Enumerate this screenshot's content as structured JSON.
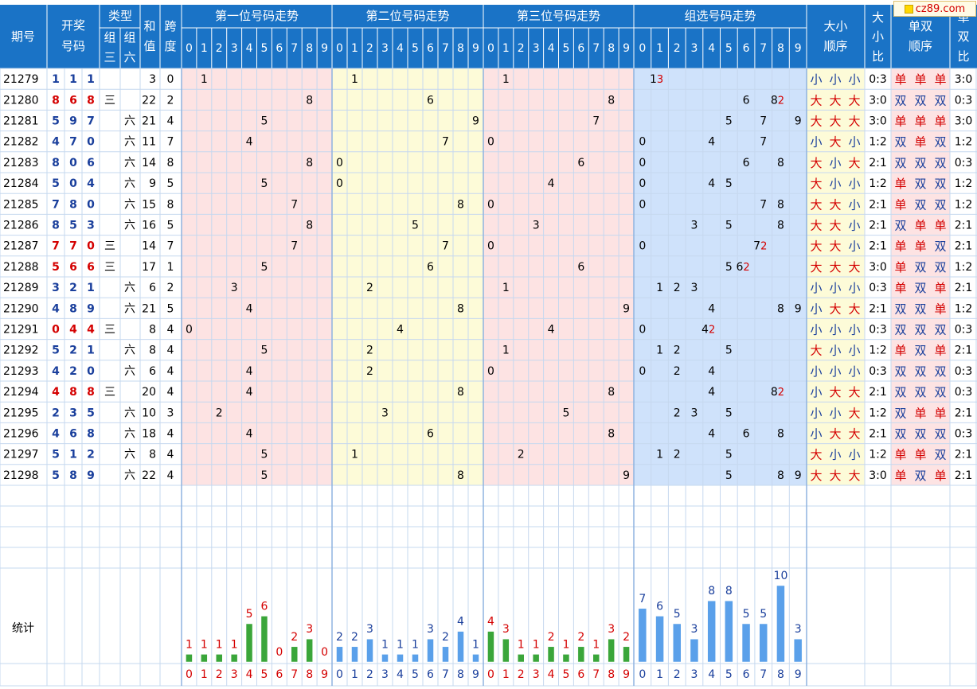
{
  "site_logo": "cz89.com",
  "header": {
    "issue": "期号",
    "draw_line1": "开奖",
    "draw_line2": "号码",
    "type": "类型",
    "zu3_a": "组",
    "zu3_b": "三",
    "zu6_a": "组",
    "zu6_b": "六",
    "sum_a": "和",
    "sum_b": "值",
    "span_a": "跨",
    "span_b": "度",
    "section1": "第一位号码走势",
    "section2": "第二位号码走势",
    "section3": "第三位号码走势",
    "section4": "组选号码走势",
    "bigsmall_order_a": "大小",
    "bigsmall_order_b": "顺序",
    "bigsmall_ratio_a": "大",
    "bigsmall_ratio_b": "小",
    "bigsmall_ratio_c": "比",
    "oddeven_order_a": "单双",
    "oddeven_order_b": "顺序",
    "oddeven_ratio_a": "单",
    "oddeven_ratio_b": "双",
    "oddeven_ratio_c": "比",
    "digits": [
      "0",
      "1",
      "2",
      "3",
      "4",
      "5",
      "6",
      "7",
      "8",
      "9"
    ]
  },
  "rows": [
    {
      "issue": "21279",
      "draw": [
        "1",
        "1",
        "1"
      ],
      "zu3": "",
      "zu6": "",
      "sum": "3",
      "span": "0",
      "group": [
        {
          "d": "1",
          "m": "3"
        }
      ],
      "bs": [
        "小",
        "小",
        "小"
      ],
      "bs_ratio": "0:3",
      "oe": [
        "单",
        "单",
        "单"
      ],
      "oe_ratio": "3:0"
    },
    {
      "issue": "21280",
      "draw": [
        "8",
        "6",
        "8"
      ],
      "zu3": "三",
      "zu6": "",
      "sum": "22",
      "span": "2",
      "group": [
        {
          "d": "6",
          "m": ""
        },
        {
          "d": "8",
          "m": "2"
        }
      ],
      "bs": [
        "大",
        "大",
        "大"
      ],
      "bs_ratio": "3:0",
      "oe": [
        "双",
        "双",
        "双"
      ],
      "oe_ratio": "0:3"
    },
    {
      "issue": "21281",
      "draw": [
        "5",
        "9",
        "7"
      ],
      "zu3": "",
      "zu6": "六",
      "sum": "21",
      "span": "4",
      "group": [
        {
          "d": "5",
          "m": ""
        },
        {
          "d": "7",
          "m": ""
        },
        {
          "d": "9",
          "m": ""
        }
      ],
      "bs": [
        "大",
        "大",
        "大"
      ],
      "bs_ratio": "3:0",
      "oe": [
        "单",
        "单",
        "单"
      ],
      "oe_ratio": "3:0"
    },
    {
      "issue": "21282",
      "draw": [
        "4",
        "7",
        "0"
      ],
      "zu3": "",
      "zu6": "六",
      "sum": "11",
      "span": "7",
      "group": [
        {
          "d": "0",
          "m": ""
        },
        {
          "d": "4",
          "m": ""
        },
        {
          "d": "7",
          "m": ""
        }
      ],
      "bs": [
        "小",
        "大",
        "小"
      ],
      "bs_ratio": "1:2",
      "oe": [
        "双",
        "单",
        "双"
      ],
      "oe_ratio": "1:2"
    },
    {
      "issue": "21283",
      "draw": [
        "8",
        "0",
        "6"
      ],
      "zu3": "",
      "zu6": "六",
      "sum": "14",
      "span": "8",
      "group": [
        {
          "d": "0",
          "m": ""
        },
        {
          "d": "6",
          "m": ""
        },
        {
          "d": "8",
          "m": ""
        }
      ],
      "bs": [
        "大",
        "小",
        "大"
      ],
      "bs_ratio": "2:1",
      "oe": [
        "双",
        "双",
        "双"
      ],
      "oe_ratio": "0:3"
    },
    {
      "issue": "21284",
      "draw": [
        "5",
        "0",
        "4"
      ],
      "zu3": "",
      "zu6": "六",
      "sum": "9",
      "span": "5",
      "group": [
        {
          "d": "0",
          "m": ""
        },
        {
          "d": "4",
          "m": ""
        },
        {
          "d": "5",
          "m": ""
        }
      ],
      "bs": [
        "大",
        "小",
        "小"
      ],
      "bs_ratio": "1:2",
      "oe": [
        "单",
        "双",
        "双"
      ],
      "oe_ratio": "1:2"
    },
    {
      "issue": "21285",
      "draw": [
        "7",
        "8",
        "0"
      ],
      "zu3": "",
      "zu6": "六",
      "sum": "15",
      "span": "8",
      "group": [
        {
          "d": "0",
          "m": ""
        },
        {
          "d": "7",
          "m": ""
        },
        {
          "d": "8",
          "m": ""
        }
      ],
      "bs": [
        "大",
        "大",
        "小"
      ],
      "bs_ratio": "2:1",
      "oe": [
        "单",
        "双",
        "双"
      ],
      "oe_ratio": "1:2"
    },
    {
      "issue": "21286",
      "draw": [
        "8",
        "5",
        "3"
      ],
      "zu3": "",
      "zu6": "六",
      "sum": "16",
      "span": "5",
      "group": [
        {
          "d": "3",
          "m": ""
        },
        {
          "d": "5",
          "m": ""
        },
        {
          "d": "8",
          "m": ""
        }
      ],
      "bs": [
        "大",
        "大",
        "小"
      ],
      "bs_ratio": "2:1",
      "oe": [
        "双",
        "单",
        "单"
      ],
      "oe_ratio": "2:1"
    },
    {
      "issue": "21287",
      "draw": [
        "7",
        "7",
        "0"
      ],
      "zu3": "三",
      "zu6": "",
      "sum": "14",
      "span": "7",
      "group": [
        {
          "d": "0",
          "m": ""
        },
        {
          "d": "7",
          "m": "2"
        }
      ],
      "bs": [
        "大",
        "大",
        "小"
      ],
      "bs_ratio": "2:1",
      "oe": [
        "单",
        "单",
        "双"
      ],
      "oe_ratio": "2:1"
    },
    {
      "issue": "21288",
      "draw": [
        "5",
        "6",
        "6"
      ],
      "zu3": "三",
      "zu6": "",
      "sum": "17",
      "span": "1",
      "group": [
        {
          "d": "5",
          "m": ""
        },
        {
          "d": "6",
          "m": "2"
        }
      ],
      "bs": [
        "大",
        "大",
        "大"
      ],
      "bs_ratio": "3:0",
      "oe": [
        "单",
        "双",
        "双"
      ],
      "oe_ratio": "1:2"
    },
    {
      "issue": "21289",
      "draw": [
        "3",
        "2",
        "1"
      ],
      "zu3": "",
      "zu6": "六",
      "sum": "6",
      "span": "2",
      "group": [
        {
          "d": "1",
          "m": ""
        },
        {
          "d": "2",
          "m": ""
        },
        {
          "d": "3",
          "m": ""
        }
      ],
      "bs": [
        "小",
        "小",
        "小"
      ],
      "bs_ratio": "0:3",
      "oe": [
        "单",
        "双",
        "单"
      ],
      "oe_ratio": "2:1"
    },
    {
      "issue": "21290",
      "draw": [
        "4",
        "8",
        "9"
      ],
      "zu3": "",
      "zu6": "六",
      "sum": "21",
      "span": "5",
      "group": [
        {
          "d": "4",
          "m": ""
        },
        {
          "d": "8",
          "m": ""
        },
        {
          "d": "9",
          "m": ""
        }
      ],
      "bs": [
        "小",
        "大",
        "大"
      ],
      "bs_ratio": "2:1",
      "oe": [
        "双",
        "双",
        "单"
      ],
      "oe_ratio": "1:2"
    },
    {
      "issue": "21291",
      "draw": [
        "0",
        "4",
        "4"
      ],
      "zu3": "三",
      "zu6": "",
      "sum": "8",
      "span": "4",
      "group": [
        {
          "d": "0",
          "m": ""
        },
        {
          "d": "4",
          "m": "2"
        }
      ],
      "bs": [
        "小",
        "小",
        "小"
      ],
      "bs_ratio": "0:3",
      "oe": [
        "双",
        "双",
        "双"
      ],
      "oe_ratio": "0:3"
    },
    {
      "issue": "21292",
      "draw": [
        "5",
        "2",
        "1"
      ],
      "zu3": "",
      "zu6": "六",
      "sum": "8",
      "span": "4",
      "group": [
        {
          "d": "1",
          "m": ""
        },
        {
          "d": "2",
          "m": ""
        },
        {
          "d": "5",
          "m": ""
        }
      ],
      "bs": [
        "大",
        "小",
        "小"
      ],
      "bs_ratio": "1:2",
      "oe": [
        "单",
        "双",
        "单"
      ],
      "oe_ratio": "2:1"
    },
    {
      "issue": "21293",
      "draw": [
        "4",
        "2",
        "0"
      ],
      "zu3": "",
      "zu6": "六",
      "sum": "6",
      "span": "4",
      "group": [
        {
          "d": "0",
          "m": ""
        },
        {
          "d": "2",
          "m": ""
        },
        {
          "d": "4",
          "m": ""
        }
      ],
      "bs": [
        "小",
        "小",
        "小"
      ],
      "bs_ratio": "0:3",
      "oe": [
        "双",
        "双",
        "双"
      ],
      "oe_ratio": "0:3"
    },
    {
      "issue": "21294",
      "draw": [
        "4",
        "8",
        "8"
      ],
      "zu3": "三",
      "zu6": "",
      "sum": "20",
      "span": "4",
      "group": [
        {
          "d": "4",
          "m": ""
        },
        {
          "d": "8",
          "m": "2"
        }
      ],
      "bs": [
        "小",
        "大",
        "大"
      ],
      "bs_ratio": "2:1",
      "oe": [
        "双",
        "双",
        "双"
      ],
      "oe_ratio": "0:3"
    },
    {
      "issue": "21295",
      "draw": [
        "2",
        "3",
        "5"
      ],
      "zu3": "",
      "zu6": "六",
      "sum": "10",
      "span": "3",
      "group": [
        {
          "d": "2",
          "m": ""
        },
        {
          "d": "3",
          "m": ""
        },
        {
          "d": "5",
          "m": ""
        }
      ],
      "bs": [
        "小",
        "小",
        "大"
      ],
      "bs_ratio": "1:2",
      "oe": [
        "双",
        "单",
        "单"
      ],
      "oe_ratio": "2:1"
    },
    {
      "issue": "21296",
      "draw": [
        "4",
        "6",
        "8"
      ],
      "zu3": "",
      "zu6": "六",
      "sum": "18",
      "span": "4",
      "group": [
        {
          "d": "4",
          "m": ""
        },
        {
          "d": "6",
          "m": ""
        },
        {
          "d": "8",
          "m": ""
        }
      ],
      "bs": [
        "小",
        "大",
        "大"
      ],
      "bs_ratio": "2:1",
      "oe": [
        "双",
        "双",
        "双"
      ],
      "oe_ratio": "0:3"
    },
    {
      "issue": "21297",
      "draw": [
        "5",
        "1",
        "2"
      ],
      "zu3": "",
      "zu6": "六",
      "sum": "8",
      "span": "4",
      "group": [
        {
          "d": "1",
          "m": ""
        },
        {
          "d": "2",
          "m": ""
        },
        {
          "d": "5",
          "m": ""
        }
      ],
      "bs": [
        "大",
        "小",
        "小"
      ],
      "bs_ratio": "1:2",
      "oe": [
        "单",
        "单",
        "双"
      ],
      "oe_ratio": "2:1"
    },
    {
      "issue": "21298",
      "draw": [
        "5",
        "8",
        "9"
      ],
      "zu3": "",
      "zu6": "六",
      "sum": "22",
      "span": "4",
      "group": [
        {
          "d": "5",
          "m": ""
        },
        {
          "d": "8",
          "m": ""
        },
        {
          "d": "9",
          "m": ""
        }
      ],
      "bs": [
        "大",
        "大",
        "大"
      ],
      "bs_ratio": "3:0",
      "oe": [
        "单",
        "双",
        "单"
      ],
      "oe_ratio": "2:1"
    }
  ],
  "stats": {
    "label": "统计",
    "pos1": [
      1,
      1,
      1,
      1,
      5,
      6,
      0,
      2,
      3,
      0
    ],
    "pos2": [
      2,
      2,
      3,
      1,
      1,
      1,
      3,
      2,
      4,
      1
    ],
    "pos3": [
      4,
      3,
      1,
      1,
      2,
      1,
      2,
      1,
      3,
      2
    ],
    "group": [
      7,
      6,
      5,
      3,
      8,
      8,
      5,
      5,
      10,
      3
    ]
  },
  "colors": {
    "header_bg": "#1a73c6",
    "header_text": "#ffffff",
    "draw_red": "#d40000",
    "draw_blue": "#1a3f9c",
    "pos1_bg": "#fde3e3",
    "pos2_bg": "#fdfbd8",
    "pos3_bg": "#fde3e3",
    "group_bg": "#cfe2fb",
    "big_small_bg": "#fdfbd8",
    "odd_even_bg": "#fde3e3",
    "bar_green": "#3aa63a",
    "bar_blue": "#5aa0ea"
  }
}
